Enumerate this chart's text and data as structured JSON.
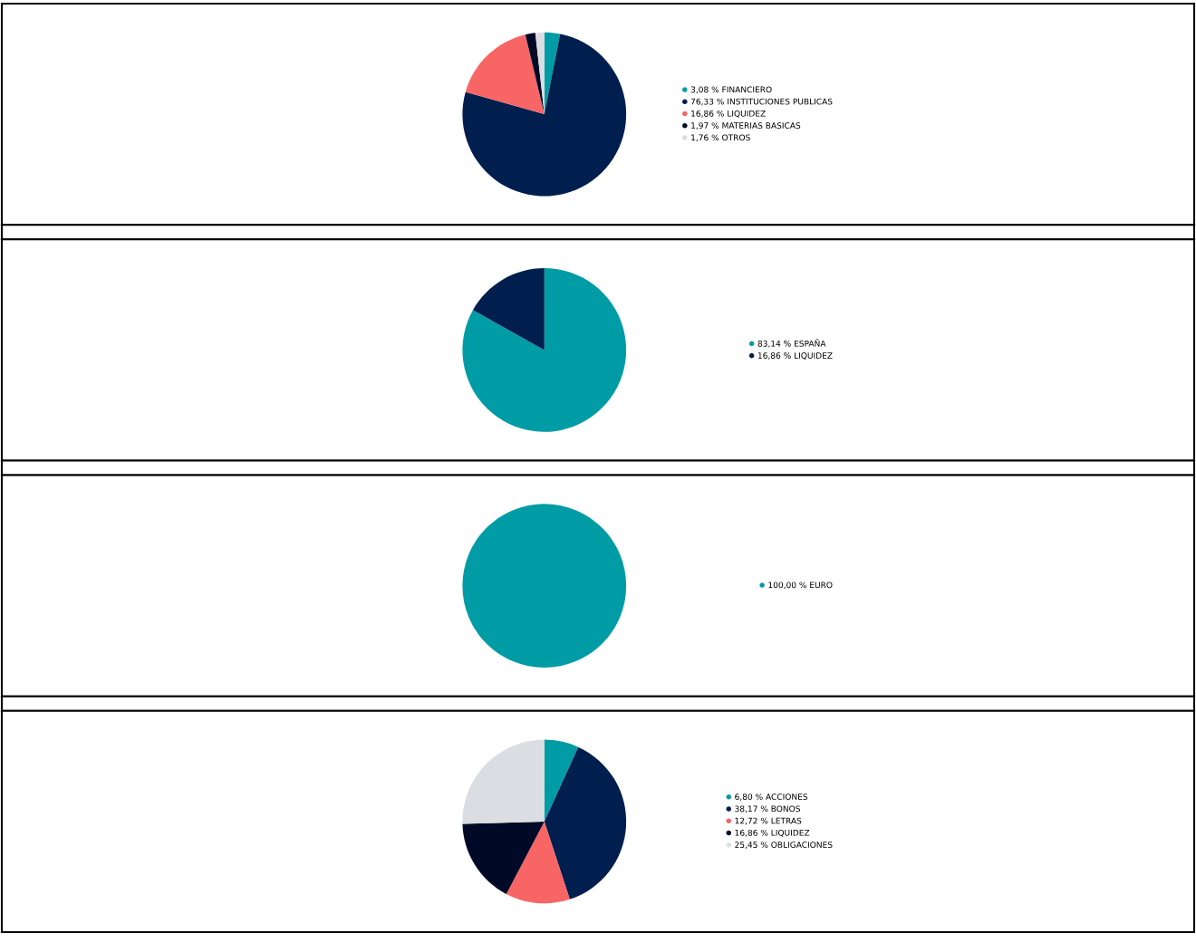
{
  "chart_data": [
    {
      "type": "pie",
      "categories": [
        "FINANCIERO",
        "INSTITUCIONES PUBLICAS",
        "LIQUIDEZ",
        "MATERIAS BASICAS",
        "OTROS"
      ],
      "values": [
        3.08,
        76.33,
        16.86,
        1.97,
        1.76
      ],
      "value_labels": [
        "3,08 %",
        "76,33 %",
        "16,86 %",
        "1,97 %",
        "1,76 %"
      ],
      "colors": [
        "#009ca6",
        "#001e4e",
        "#f76565",
        "#000a26",
        "#dadee2"
      ],
      "legend": "right"
    },
    {
      "type": "pie",
      "categories": [
        "ESPAÑA",
        "LIQUIDEZ"
      ],
      "values": [
        83.14,
        16.86
      ],
      "value_labels": [
        "83,14 %",
        "16,86 %"
      ],
      "colors": [
        "#009ca6",
        "#001e4e"
      ],
      "legend": "right"
    },
    {
      "type": "pie",
      "categories": [
        "EURO"
      ],
      "values": [
        100.0
      ],
      "value_labels": [
        "100,00 %"
      ],
      "colors": [
        "#009ca6"
      ],
      "legend": "right"
    },
    {
      "type": "pie",
      "categories": [
        "ACCIONES",
        "BONOS",
        "LETRAS",
        "LIQUIDEZ",
        "OBLIGACIONES"
      ],
      "values": [
        6.8,
        38.17,
        12.72,
        16.86,
        25.45
      ],
      "value_labels": [
        "6,80 %",
        "38,17 %",
        "12,72 %",
        "16,86 %",
        "25,45 %"
      ],
      "colors": [
        "#009ca6",
        "#001e4e",
        "#f76565",
        "#000a26",
        "#dadee2"
      ],
      "legend": "right"
    }
  ]
}
